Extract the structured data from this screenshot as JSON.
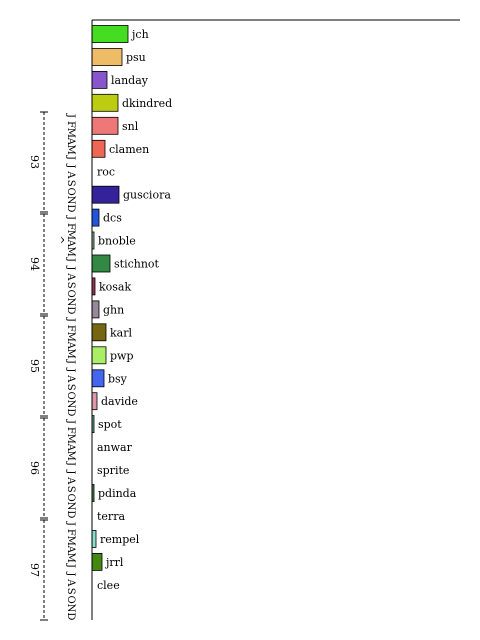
{
  "chart_data": {
    "type": "bar",
    "orientation": "horizontal",
    "title": "",
    "xlabel": "",
    "ylabel": "",
    "time_axis": {
      "marker": "^",
      "months": [
        "J",
        "F",
        "M",
        "A",
        "M",
        "J",
        "J",
        "A",
        "S",
        "O",
        "N",
        "D"
      ],
      "years": [
        "93",
        "94",
        "95",
        "96",
        "97"
      ]
    },
    "bars": [
      {
        "label": "jch",
        "value": 36,
        "color": "#44dd22"
      },
      {
        "label": "psu",
        "value": 30,
        "color": "#eebb66"
      },
      {
        "label": "landay",
        "value": 15,
        "color": "#8855cc"
      },
      {
        "label": "dkindred",
        "value": 26,
        "color": "#bbcc11"
      },
      {
        "label": "snl",
        "value": 26,
        "color": "#ee7777"
      },
      {
        "label": "clamen",
        "value": 13,
        "color": "#ee6655"
      },
      {
        "label": "roc",
        "value": 0,
        "color": "#ffffff"
      },
      {
        "label": "gusciora",
        "value": 27,
        "color": "#332299"
      },
      {
        "label": "dcs",
        "value": 7,
        "color": "#2255dd"
      },
      {
        "label": "bnoble",
        "value": 2,
        "color": "#88bb99"
      },
      {
        "label": "stichnot",
        "value": 18,
        "color": "#338844"
      },
      {
        "label": "kosak",
        "value": 3,
        "color": "#993355"
      },
      {
        "label": "ghn",
        "value": 7,
        "color": "#998899"
      },
      {
        "label": "karl",
        "value": 14,
        "color": "#776611"
      },
      {
        "label": "pwp",
        "value": 14,
        "color": "#aaee66"
      },
      {
        "label": "bsy",
        "value": 12,
        "color": "#4466ee"
      },
      {
        "label": "davide",
        "value": 5,
        "color": "#dd99aa"
      },
      {
        "label": "spot",
        "value": 2,
        "color": "#66aa88"
      },
      {
        "label": "anwar",
        "value": 0,
        "color": "#ffffff"
      },
      {
        "label": "sprite",
        "value": 0,
        "color": "#ffffff"
      },
      {
        "label": "pdinda",
        "value": 2,
        "color": "#448855"
      },
      {
        "label": "terra",
        "value": 0,
        "color": "#ffffff"
      },
      {
        "label": "rempel",
        "value": 4,
        "color": "#88ddcc"
      },
      {
        "label": "jrrl",
        "value": 10,
        "color": "#448811"
      },
      {
        "label": "clee",
        "value": 0,
        "color": "#ffffff"
      }
    ]
  }
}
